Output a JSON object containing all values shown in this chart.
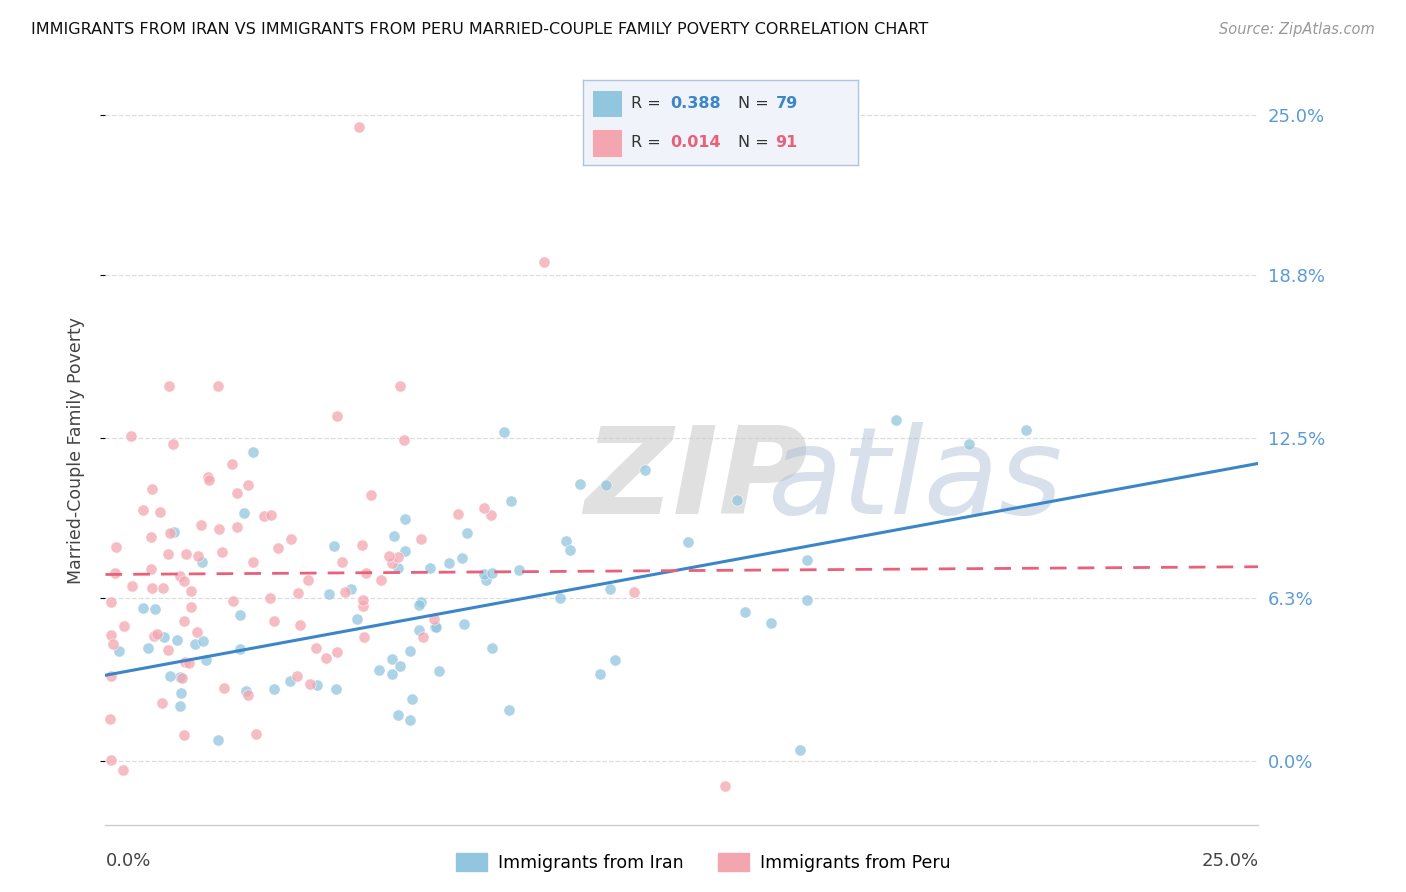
{
  "title": "IMMIGRANTS FROM IRAN VS IMMIGRANTS FROM PERU MARRIED-COUPLE FAMILY POVERTY CORRELATION CHART",
  "source": "Source: ZipAtlas.com",
  "ylabel": "Married-Couple Family Poverty",
  "iran_R": 0.388,
  "iran_N": 79,
  "peru_R": 0.014,
  "peru_N": 91,
  "iran_color": "#92c5de",
  "peru_color": "#f4a6b0",
  "iran_line_color": "#3a86c8",
  "peru_line_color": "#e8607a",
  "legend_label_iran": "Immigrants from Iran",
  "legend_label_peru": "Immigrants from Peru",
  "watermark_zip": "ZIP",
  "watermark_atlas": "atlas",
  "background_color": "#ffffff",
  "grid_color": "#dddddd",
  "tick_label_color": "#5b9bd5",
  "xmin": 0.0,
  "xmax": 0.25,
  "ymin": -0.025,
  "ymax": 0.265,
  "y_tick_vals": [
    0.0,
    0.063,
    0.125,
    0.188,
    0.25
  ],
  "y_tick_labels_right": [
    "0.0%",
    "6.3%",
    "12.5%",
    "18.8%",
    "25.0%"
  ],
  "iran_line_start_y": 0.033,
  "iran_line_end_y": 0.115,
  "peru_line_start_y": 0.072,
  "peru_line_end_y": 0.075,
  "iran_seed": 12,
  "peru_seed": 7
}
